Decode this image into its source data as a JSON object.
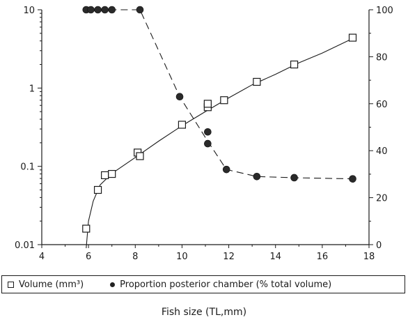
{
  "chart_data": {
    "type": "scatter",
    "title": "",
    "xlabel": "Fish size (TL,mm)",
    "ylabel": "",
    "y2label": "",
    "xlim": [
      4,
      18
    ],
    "ylim": [
      0.01,
      10
    ],
    "yscale": "log",
    "y2lim": [
      0,
      100
    ],
    "grid": false,
    "legend_position": "bottom",
    "x_ticks": [
      "4",
      "6",
      "8",
      "10",
      "12",
      "14",
      "16",
      "18"
    ],
    "y_ticks": [
      "0.01",
      "0.1",
      "1",
      "10"
    ],
    "y2_ticks": [
      "0",
      "20",
      "40",
      "60",
      "80",
      "100"
    ],
    "series": [
      {
        "name": "Volume (mm³)",
        "axis": "left",
        "marker": "open-square",
        "line": "solid",
        "x": [
          5.9,
          6.4,
          6.7,
          7.0,
          8.1,
          8.2,
          10.0,
          11.1,
          11.1,
          11.8,
          13.2,
          14.8,
          17.3
        ],
        "y": [
          0.016,
          0.05,
          0.077,
          0.08,
          0.15,
          0.135,
          0.34,
          0.57,
          0.63,
          0.7,
          1.2,
          2.0,
          4.4
        ]
      },
      {
        "name": "Proportion posterior chamber (% total volume)",
        "axis": "right",
        "marker": "filled-circle",
        "line": "dashed",
        "x": [
          5.9,
          6.1,
          6.4,
          6.7,
          7.0,
          8.2,
          9.9,
          11.1,
          11.1,
          11.9,
          13.2,
          14.8,
          17.3
        ],
        "y": [
          100,
          100,
          100,
          100,
          100,
          100,
          63,
          48,
          43,
          32,
          29,
          28.5,
          28
        ]
      }
    ]
  }
}
